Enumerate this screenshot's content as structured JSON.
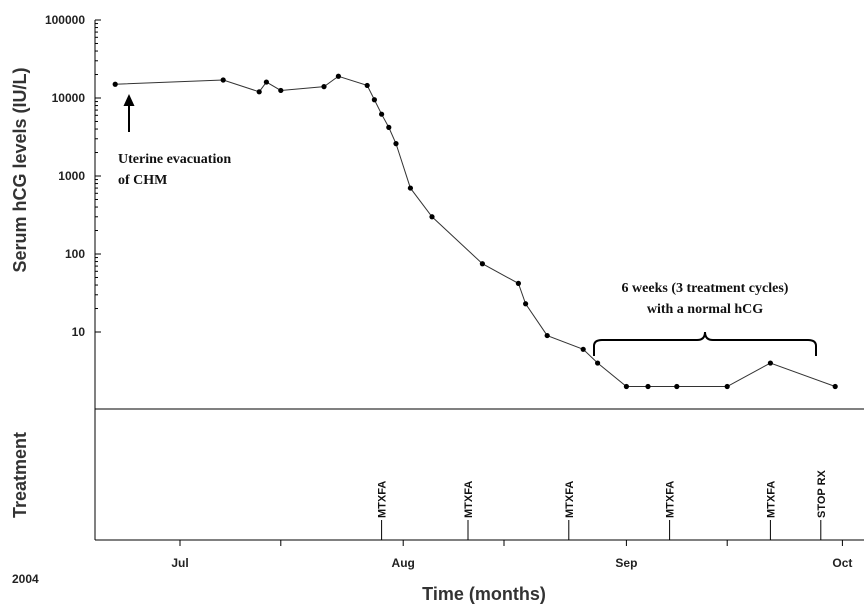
{
  "chart_data": {
    "type": "line",
    "yscale": "log",
    "ylim": [
      1,
      100000
    ],
    "y_ticks": [
      "100000",
      "10000",
      "1000",
      "100",
      "10"
    ],
    "ylabel": "Serum hCG levels (IU/L)",
    "xlabel": "Time (months)",
    "year_label": "2004",
    "x_ticks": [
      "Jul",
      "Aug",
      "Sep",
      "Oct"
    ],
    "treatment_label": "Treatment",
    "series": [
      {
        "points": [
          {
            "x": "2004-06-22",
            "y": 15000
          },
          {
            "x": "2004-07-07",
            "y": 17000
          },
          {
            "x": "2004-07-12",
            "y": 12000
          },
          {
            "x": "2004-07-13",
            "y": 16000
          },
          {
            "x": "2004-07-15",
            "y": 12500
          },
          {
            "x": "2004-07-21",
            "y": 14000
          },
          {
            "x": "2004-07-23",
            "y": 19000
          },
          {
            "x": "2004-07-27",
            "y": 14500
          },
          {
            "x": "2004-07-28",
            "y": 9500
          },
          {
            "x": "2004-07-29",
            "y": 6200
          },
          {
            "x": "2004-07-30",
            "y": 4200
          },
          {
            "x": "2004-07-31",
            "y": 2600
          },
          {
            "x": "2004-08-02",
            "y": 700
          },
          {
            "x": "2004-08-05",
            "y": 300
          },
          {
            "x": "2004-08-12",
            "y": 75
          },
          {
            "x": "2004-08-17",
            "y": 42
          },
          {
            "x": "2004-08-18",
            "y": 23
          },
          {
            "x": "2004-08-21",
            "y": 9
          },
          {
            "x": "2004-08-26",
            "y": 6
          },
          {
            "x": "2004-08-28",
            "y": 4
          },
          {
            "x": "2004-09-01",
            "y": 2
          },
          {
            "x": "2004-09-04",
            "y": 2
          },
          {
            "x": "2004-09-08",
            "y": 2
          },
          {
            "x": "2004-09-15",
            "y": 2
          },
          {
            "x": "2004-09-21",
            "y": 4
          },
          {
            "x": "2004-09-30",
            "y": 2
          }
        ]
      }
    ],
    "annotations": {
      "evacuation": {
        "lines": [
          "Uterine evacuation",
          "of CHM"
        ],
        "x": "2004-06-22"
      },
      "normal_period": {
        "lines": [
          "6 weeks (3 treatment cycles)",
          "with a normal hCG"
        ],
        "x_start": "2004-08-28",
        "x_end": "2004-09-28"
      }
    },
    "treatments": [
      {
        "label": "MTXFA",
        "x": "2004-07-29"
      },
      {
        "label": "MTXFA",
        "x": "2004-08-10"
      },
      {
        "label": "MTXFA",
        "x": "2004-08-24"
      },
      {
        "label": "MTXFA",
        "x": "2004-09-07"
      },
      {
        "label": "MTXFA",
        "x": "2004-09-21"
      },
      {
        "label": "STOP RX",
        "x": "2004-09-28"
      }
    ]
  },
  "colors": {
    "line": "#333333",
    "marker": "#000000",
    "axis": "#000000"
  }
}
